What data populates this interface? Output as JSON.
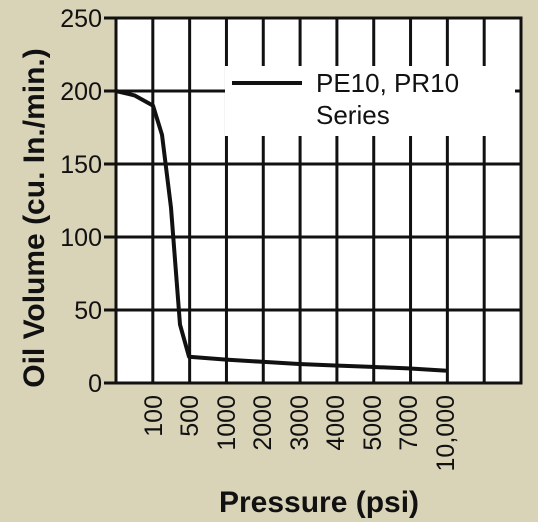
{
  "chart_data": {
    "type": "line",
    "title": "",
    "xlabel": "Pressure (psi)",
    "ylabel": "Oil Volume (cu. In./min.)",
    "x_tick_labels": [
      "100",
      "500",
      "1000",
      "2000",
      "3000",
      "4000",
      "5000",
      "7000",
      "10,000"
    ],
    "y_ticks": [
      0,
      50,
      100,
      150,
      200,
      250
    ],
    "y_tick_labels": [
      "0",
      "50",
      "100",
      "150",
      "200",
      "250"
    ],
    "ylim": [
      0,
      250
    ],
    "x_scale": "categorical (uneven pressure steps)",
    "grid": true,
    "legend_placement": "top-right",
    "series": [
      {
        "name": "PE10, PR10 Series",
        "color": "#111111",
        "points": [
          {
            "x": 0,
            "y": 200
          },
          {
            "x": 50,
            "y": 197
          },
          {
            "x": 100,
            "y": 190
          },
          {
            "x": 200,
            "y": 170
          },
          {
            "x": 300,
            "y": 120
          },
          {
            "x": 400,
            "y": 40
          },
          {
            "x": 500,
            "y": 18
          },
          {
            "x": 1000,
            "y": 16
          },
          {
            "x": 2000,
            "y": 14.5
          },
          {
            "x": 3000,
            "y": 13
          },
          {
            "x": 4000,
            "y": 12
          },
          {
            "x": 5000,
            "y": 11
          },
          {
            "x": 7000,
            "y": 10
          },
          {
            "x": 10000,
            "y": 8.5
          }
        ]
      }
    ]
  }
}
